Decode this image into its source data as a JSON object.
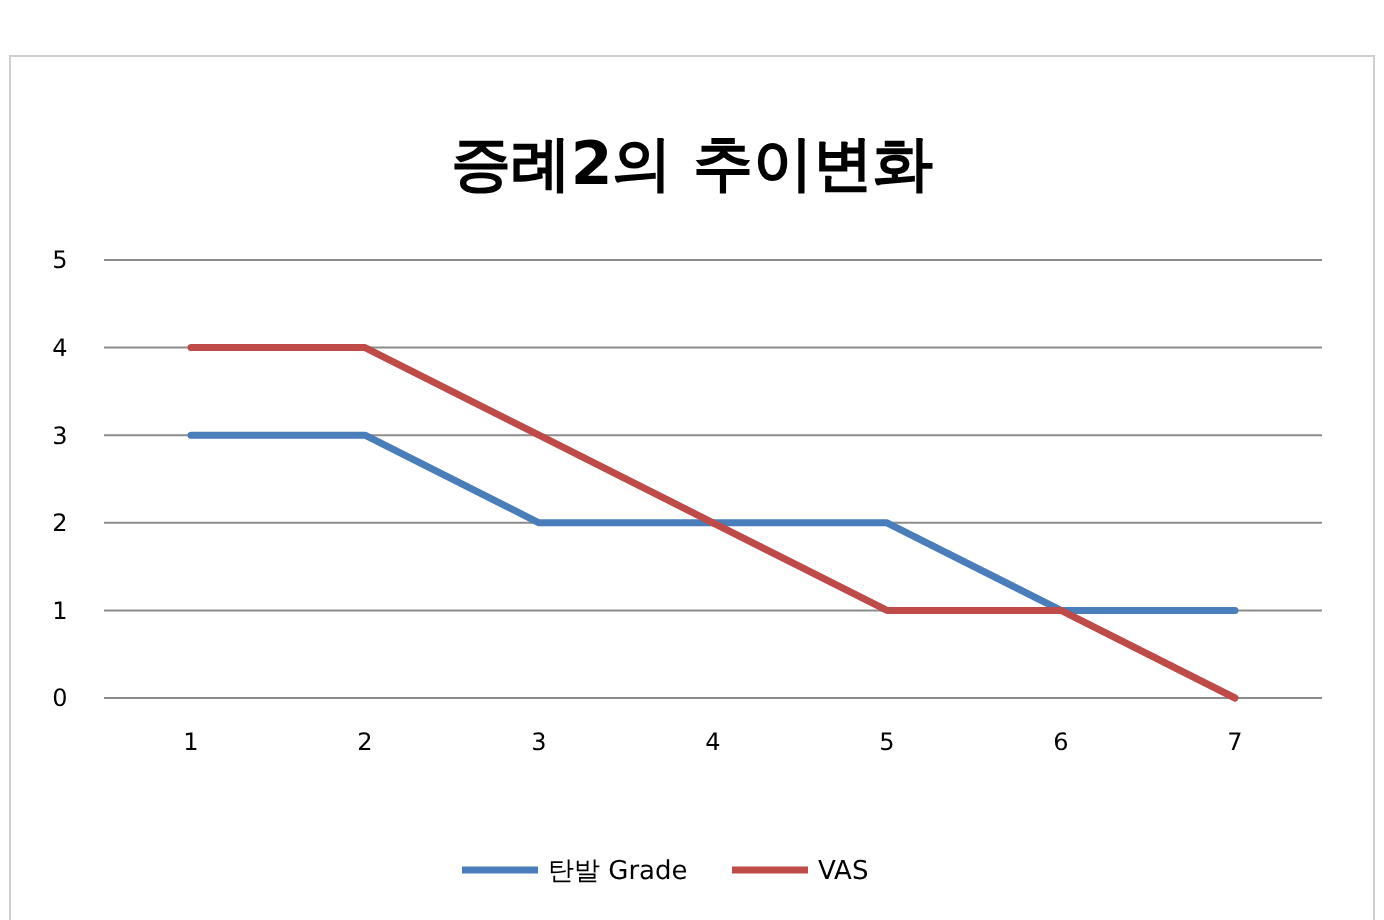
{
  "chart_data": {
    "type": "line",
    "title": "증례2의 추이변화",
    "categories": [
      "1",
      "2",
      "3",
      "4",
      "5",
      "6",
      "7"
    ],
    "series": [
      {
        "name": "탄발 Grade",
        "color": "#4a7ebb",
        "values": [
          3,
          3,
          2,
          2,
          2,
          1,
          1
        ]
      },
      {
        "name": "VAS",
        "color": "#be4b48",
        "values": [
          4,
          4,
          3,
          2,
          1,
          1,
          0
        ]
      }
    ],
    "ylim": [
      0,
      5
    ],
    "yticks": [
      0,
      1,
      2,
      3,
      4,
      5
    ],
    "grid": "y",
    "legend": "bottom",
    "marker": "none",
    "line_style": "solid"
  }
}
